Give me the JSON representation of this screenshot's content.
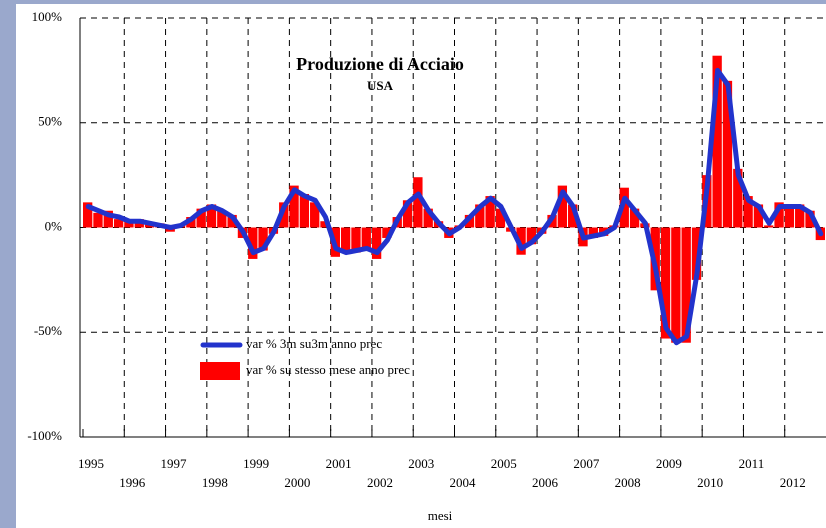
{
  "chart_data": {
    "type": "bar",
    "title": "Produzione di Acciaio",
    "subtitle": "USA",
    "xlabel": "mesi",
    "x": [
      1995,
      1995.25,
      1995.5,
      1995.75,
      1996,
      1996.25,
      1996.5,
      1996.75,
      1997,
      1997.25,
      1997.5,
      1997.75,
      1998,
      1998.25,
      1998.5,
      1998.75,
      1999,
      1999.25,
      1999.5,
      1999.75,
      2000,
      2000.25,
      2000.5,
      2000.75,
      2001,
      2001.25,
      2001.5,
      2001.75,
      2002,
      2002.25,
      2002.5,
      2002.75,
      2003,
      2003.25,
      2003.5,
      2003.75,
      2004,
      2004.25,
      2004.5,
      2004.75,
      2005,
      2005.25,
      2005.5,
      2005.75,
      2006,
      2006.25,
      2006.5,
      2006.75,
      2007,
      2007.25,
      2007.5,
      2007.75,
      2008,
      2008.25,
      2008.5,
      2008.75,
      2009,
      2009.25,
      2009.5,
      2009.75,
      2010,
      2010.25,
      2010.5,
      2010.75,
      2011,
      2011.25,
      2011.5,
      2011.75,
      2012,
      2012.25,
      2012.5,
      2012.75
    ],
    "series": [
      {
        "name": "var % 3m su3m  anno prec",
        "type": "line",
        "color": "#2233cc",
        "values": [
          10,
          8,
          6,
          5,
          3,
          3,
          2,
          1,
          0,
          1,
          4,
          8,
          10,
          8,
          5,
          -2,
          -12,
          -10,
          -2,
          10,
          18,
          15,
          13,
          5,
          -10,
          -12,
          -11,
          -10,
          -12,
          -6,
          4,
          12,
          16,
          8,
          2,
          -3,
          0,
          5,
          10,
          14,
          10,
          0,
          -10,
          -7,
          -2,
          5,
          17,
          10,
          -5,
          -4,
          -3,
          0,
          14,
          8,
          2,
          -20,
          -48,
          -55,
          -52,
          -22,
          20,
          75,
          68,
          25,
          13,
          10,
          2,
          10,
          10,
          10,
          7,
          -3
        ]
      },
      {
        "name": "var % su stesso mese  anno prec",
        "type": "bar",
        "color": "#ff0000",
        "values": [
          12,
          7,
          8,
          4,
          3,
          4,
          2,
          2,
          -2,
          1,
          5,
          9,
          11,
          8,
          6,
          -5,
          -15,
          -11,
          -3,
          12,
          20,
          16,
          12,
          3,
          -14,
          -12,
          -12,
          -10,
          -15,
          -5,
          5,
          13,
          24,
          9,
          3,
          -5,
          1,
          6,
          11,
          15,
          9,
          -2,
          -13,
          -8,
          -3,
          6,
          20,
          11,
          -9,
          -5,
          -4,
          1,
          19,
          9,
          2,
          -30,
          -53,
          -55,
          -55,
          -25,
          25,
          82,
          70,
          28,
          15,
          11,
          1,
          12,
          11,
          11,
          8,
          -6
        ]
      }
    ],
    "xlim": [
      1995,
      2013
    ],
    "xticks": [
      1995,
      1996,
      1997,
      1998,
      1999,
      2000,
      2001,
      2002,
      2003,
      2004,
      2005,
      2006,
      2007,
      2008,
      2009,
      2010,
      2011,
      2012
    ],
    "ylim": [
      -100,
      100
    ],
    "yticks": [
      {
        "value": -100,
        "label": "-100%"
      },
      {
        "value": -50,
        "label": "-50%"
      },
      {
        "value": 0,
        "label": "0%"
      },
      {
        "value": 50,
        "label": "50%"
      },
      {
        "value": 100,
        "label": "100%"
      }
    ],
    "grid": true
  }
}
